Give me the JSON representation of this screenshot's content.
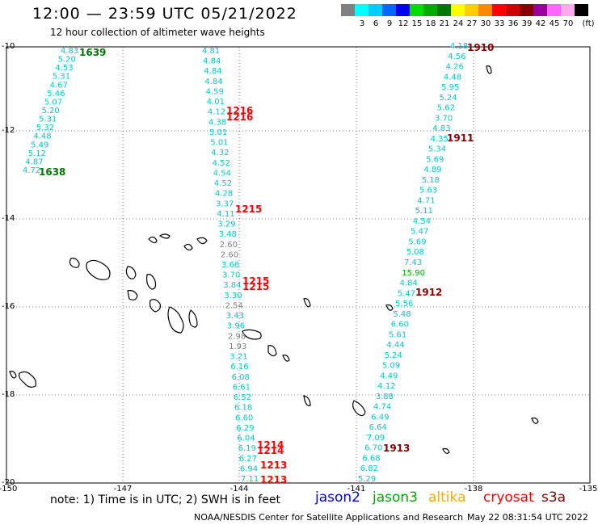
{
  "header": {
    "title": "12:00 — 23:59 UTC 05/21/2022",
    "subtitle": "12 hour collection of altimeter wave heights"
  },
  "color_scale": {
    "unit_label": "(ft)",
    "bins": [
      {
        "color": "#808080",
        "label": ""
      },
      {
        "color": "#00ffff",
        "label": "3"
      },
      {
        "color": "#00ccff",
        "label": "6"
      },
      {
        "color": "#0066ff",
        "label": "9"
      },
      {
        "color": "#0000ee",
        "label": "12"
      },
      {
        "color": "#00dd00",
        "label": "15"
      },
      {
        "color": "#00aa00",
        "label": "18"
      },
      {
        "color": "#007700",
        "label": "21"
      },
      {
        "color": "#ffff00",
        "label": "24"
      },
      {
        "color": "#ffcc00",
        "label": "27"
      },
      {
        "color": "#ff8800",
        "label": "30"
      },
      {
        "color": "#ff0000",
        "label": "33"
      },
      {
        "color": "#cc0000",
        "label": "36"
      },
      {
        "color": "#880000",
        "label": "39"
      },
      {
        "color": "#990099",
        "label": "42"
      },
      {
        "color": "#ff66ff",
        "label": "45"
      },
      {
        "color": "#ffaaee",
        "label": "70"
      },
      {
        "color": "#000000",
        "label": ""
      }
    ]
  },
  "axes": {
    "y_labels": [
      "-10",
      "-12",
      "-14",
      "-16",
      "-18",
      "-20"
    ],
    "x_labels": [
      "-150",
      "-147",
      "-144",
      "-141",
      "-138",
      "-135"
    ]
  },
  "tracks": [
    {
      "labels": [
        {
          "text": "1639",
          "color": "#007700"
        },
        {
          "text": "1638",
          "color": "#007700"
        }
      ],
      "values": [
        "4.83",
        "5.20",
        "4.53",
        "5.31",
        "4.67",
        "5.46",
        "5.07",
        "5.20",
        "5.31",
        "5.32",
        "4.48",
        "5.49",
        "5.12",
        "4.87",
        "4.72"
      ]
    },
    {
      "labels": [
        {
          "text": "1216",
          "color": "#ff0000"
        },
        {
          "text": "1216",
          "color": "#ff0000"
        },
        {
          "text": "1215",
          "color": "#ff0000"
        },
        {
          "text": "1215",
          "color": "#ff0000"
        },
        {
          "text": "1215",
          "color": "#ff0000"
        },
        {
          "text": "1214",
          "color": "#ff0000"
        },
        {
          "text": "1214",
          "color": "#ff0000"
        },
        {
          "text": "1213",
          "color": "#ff0000"
        },
        {
          "text": "1213",
          "color": "#ff0000"
        }
      ],
      "values": [
        "4.81",
        "4.84",
        "4.84",
        "4.84",
        "4.59",
        "4.01",
        "4.12",
        "4.38",
        "5.01",
        "5.01",
        "4.32",
        "4.52",
        "4.54",
        "4.52",
        "4.28",
        "3.37",
        "4.11",
        "3.29",
        "3.48",
        "2.60",
        "2.60",
        "3.66",
        "3.70",
        "3.84",
        "3.30",
        "2.54",
        "3.43",
        "3.96",
        "2.98",
        "1.93",
        "3.21",
        "6.16",
        "6.08",
        "6.61",
        "6.52",
        "6.18",
        "6.60",
        "6.29",
        "6.04",
        "6.19",
        "6.27",
        "6.94",
        "7.11"
      ]
    },
    {
      "labels": [
        {
          "text": "1910",
          "color": "#880000"
        },
        {
          "text": "1911",
          "color": "#880000"
        },
        {
          "text": "1912",
          "color": "#880000"
        },
        {
          "text": "1913",
          "color": "#880000"
        }
      ],
      "values": [
        "4.18",
        "4.56",
        "4.26",
        "4.48",
        "5.95",
        "5.24",
        "5.62",
        "3.70",
        "4.83",
        "4.35",
        "5.34",
        "5.69",
        "4.89",
        "5.18",
        "5.63",
        "4.71",
        "5.11",
        "4.54",
        "5.47",
        "5.69",
        "5.08",
        "7.43",
        "15.90",
        "4.84",
        "5.47",
        "5.56",
        "5.48",
        "6.60",
        "5.61",
        "4.44",
        "5.24",
        "5.09",
        "4.49",
        "4.12",
        "3.88",
        "4.74",
        "6.49",
        "6.64",
        "7.09",
        "6.70",
        "6.68",
        "6.82",
        "5.29"
      ]
    }
  ],
  "note": "note: 1) Time is in UTC; 2) SWH is in feet",
  "legend": [
    {
      "text": "jason2",
      "color": "#0000ee"
    },
    {
      "text": "jason3",
      "color": "#00aa00"
    },
    {
      "text": "altika",
      "color": "#ffaa00"
    },
    {
      "text": "cryosat",
      "color": "#ff0000"
    },
    {
      "text": "s3a",
      "color": "#880000"
    }
  ],
  "credit": "NOAA/NESDIS Center for Satellite Applications and Research",
  "timestamp": "May 22 08:31:54 UTC 2022"
}
